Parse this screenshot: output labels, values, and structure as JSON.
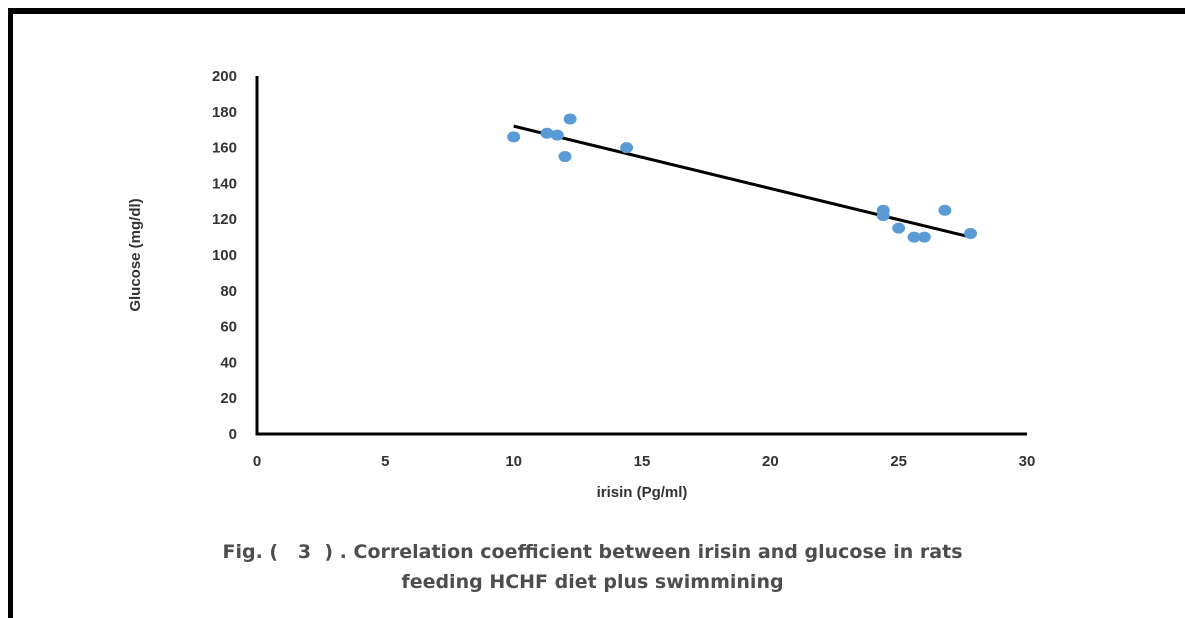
{
  "chart_data": {
    "type": "scatter",
    "title": "",
    "xlabel": "irisin (Pg/ml)",
    "ylabel": "Glucose (mg/dl)",
    "xlim": [
      0,
      30
    ],
    "ylim": [
      0,
      200
    ],
    "x_ticks": [
      0,
      5,
      10,
      15,
      20,
      25,
      30
    ],
    "y_ticks": [
      0,
      20,
      40,
      60,
      80,
      100,
      120,
      140,
      160,
      180,
      200
    ],
    "grid": false,
    "legend": "none",
    "series": [
      {
        "points": [
          {
            "x": 10.0,
            "y": 166
          },
          {
            "x": 11.3,
            "y": 168
          },
          {
            "x": 11.7,
            "y": 167
          },
          {
            "x": 12.2,
            "y": 176
          },
          {
            "x": 12.0,
            "y": 155
          },
          {
            "x": 14.4,
            "y": 160
          },
          {
            "x": 24.4,
            "y": 125
          },
          {
            "x": 24.4,
            "y": 122
          },
          {
            "x": 25.0,
            "y": 115
          },
          {
            "x": 25.6,
            "y": 110
          },
          {
            "x": 26.0,
            "y": 110
          },
          {
            "x": 26.8,
            "y": 125
          },
          {
            "x": 27.8,
            "y": 112
          }
        ],
        "color": "#5b9bd5"
      }
    ],
    "trendline": {
      "type": "linear",
      "from": {
        "x": 10.0,
        "y": 172
      },
      "to": {
        "x": 27.8,
        "y": 110
      },
      "color": "#000000"
    }
  },
  "caption": {
    "line1": "Fig. (   3  ) . Correlation coefficient between irisin and glucose in rats",
    "line2": "feeding HCHF diet plus swimmining"
  }
}
